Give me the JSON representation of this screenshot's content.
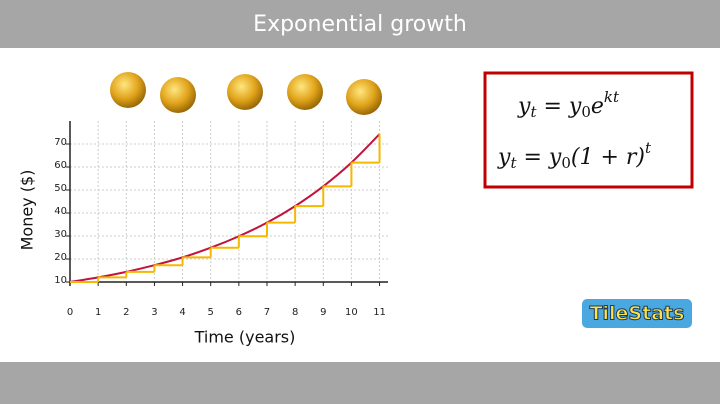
{
  "header": {
    "title": "Exponential growth"
  },
  "chart_data": {
    "type": "line",
    "xlabel": "Time (years)",
    "ylabel": "Money ($)",
    "x": [
      0,
      1,
      2,
      3,
      4,
      5,
      6,
      7,
      8,
      9,
      10,
      11
    ],
    "series": [
      {
        "color": "#c0143c",
        "values": [
          10,
          12,
          14.4,
          17.3,
          20.7,
          24.9,
          29.9,
          35.8,
          43,
          51.6,
          61.9,
          74.3
        ]
      },
      {
        "color": "#f5b800",
        "step": true,
        "values": [
          10,
          12,
          14.4,
          17.3,
          20.7,
          24.9,
          29.9,
          35.8,
          43,
          51.6,
          61.9,
          74.3
        ]
      }
    ],
    "xlim": [
      0,
      11.3
    ],
    "ylim": [
      10,
      80
    ],
    "xticks": [
      0,
      1,
      2,
      3,
      4,
      5,
      6,
      7,
      8,
      9,
      10,
      11
    ],
    "yticks": [
      10,
      20,
      30,
      40,
      50,
      60,
      70
    ],
    "grid": true
  },
  "equations": [
    [
      {
        "text": "y",
        "pos": "base"
      },
      {
        "text": "t",
        "pos": "sub"
      },
      {
        "text": " = y",
        "pos": "base"
      },
      {
        "text": "0",
        "pos": "sub"
      },
      {
        "text": "e",
        "pos": "base"
      },
      {
        "text": "kt",
        "pos": "sup"
      }
    ],
    [
      {
        "text": "y",
        "pos": "base"
      },
      {
        "text": "t",
        "pos": "sub"
      },
      {
        "text": " = y",
        "pos": "base"
      },
      {
        "text": "0",
        "pos": "sub"
      },
      {
        "text": "(1 + r)",
        "pos": "base"
      },
      {
        "text": "t",
        "pos": "sup"
      }
    ]
  ],
  "logo": "TileStats"
}
